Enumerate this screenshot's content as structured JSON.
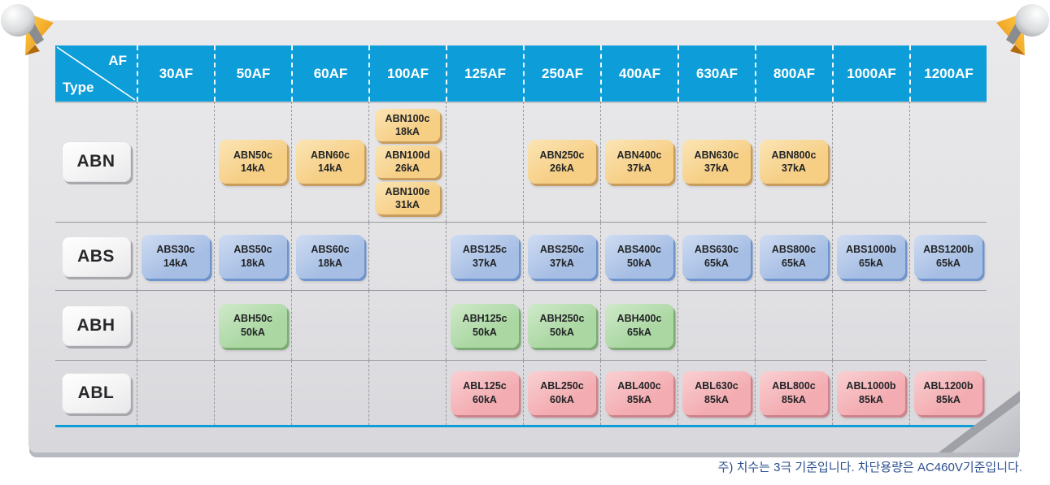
{
  "header": {
    "corner_top": "AF",
    "corner_bottom": "Type",
    "columns": [
      "30AF",
      "50AF",
      "60AF",
      "100AF",
      "125AF",
      "250AF",
      "400AF",
      "630AF",
      "800AF",
      "1000AF",
      "1200AF"
    ]
  },
  "rows": [
    {
      "type": "ABN",
      "family": "abn",
      "cells": [
        [],
        [
          {
            "model": "ABN50c",
            "ka": "14kA"
          }
        ],
        [
          {
            "model": "ABN60c",
            "ka": "14kA"
          }
        ],
        [
          {
            "model": "ABN100c",
            "ka": "18kA"
          },
          {
            "model": "ABN100d",
            "ka": "26kA"
          },
          {
            "model": "ABN100e",
            "ka": "31kA"
          }
        ],
        [],
        [
          {
            "model": "ABN250c",
            "ka": "26kA"
          }
        ],
        [
          {
            "model": "ABN400c",
            "ka": "37kA"
          }
        ],
        [
          {
            "model": "ABN630c",
            "ka": "37kA"
          }
        ],
        [
          {
            "model": "ABN800c",
            "ka": "37kA"
          }
        ],
        [],
        []
      ]
    },
    {
      "type": "ABS",
      "family": "abs",
      "cells": [
        [
          {
            "model": "ABS30c",
            "ka": "14kA"
          }
        ],
        [
          {
            "model": "ABS50c",
            "ka": "18kA"
          }
        ],
        [
          {
            "model": "ABS60c",
            "ka": "18kA"
          }
        ],
        [],
        [
          {
            "model": "ABS125c",
            "ka": "37kA"
          }
        ],
        [
          {
            "model": "ABS250c",
            "ka": "37kA"
          }
        ],
        [
          {
            "model": "ABS400c",
            "ka": "50kA"
          }
        ],
        [
          {
            "model": "ABS630c",
            "ka": "65kA"
          }
        ],
        [
          {
            "model": "ABS800c",
            "ka": "65kA"
          }
        ],
        [
          {
            "model": "ABS1000b",
            "ka": "65kA"
          }
        ],
        [
          {
            "model": "ABS1200b",
            "ka": "65kA"
          }
        ]
      ]
    },
    {
      "type": "ABH",
      "family": "abh",
      "cells": [
        [],
        [
          {
            "model": "ABH50c",
            "ka": "50kA"
          }
        ],
        [],
        [],
        [
          {
            "model": "ABH125c",
            "ka": "50kA"
          }
        ],
        [
          {
            "model": "ABH250c",
            "ka": "50kA"
          }
        ],
        [
          {
            "model": "ABH400c",
            "ka": "65kA"
          }
        ],
        [],
        [],
        [],
        []
      ]
    },
    {
      "type": "ABL",
      "family": "abl",
      "cells": [
        [],
        [],
        [],
        [],
        [
          {
            "model": "ABL125c",
            "ka": "60kA"
          }
        ],
        [
          {
            "model": "ABL250c",
            "ka": "60kA"
          }
        ],
        [
          {
            "model": "ABL400c",
            "ka": "85kA"
          }
        ],
        [
          {
            "model": "ABL630c",
            "ka": "85kA"
          }
        ],
        [
          {
            "model": "ABL800c",
            "ka": "85kA"
          }
        ],
        [
          {
            "model": "ABL1000b",
            "ka": "85kA"
          }
        ],
        [
          {
            "model": "ABL1200b",
            "ka": "85kA"
          }
        ]
      ]
    }
  ],
  "footnote": "주) 치수는 3극 기준입니다. 차단용량은 AC460V기준입니다.",
  "colors": {
    "header-bg": "#0D9ED9",
    "abn-fill": "#F6CE84",
    "abn-light": "#FBE5B5",
    "abn-shadow": "#C79C5C",
    "abs-fill": "#A6BEE4",
    "abs-light": "#CFDCF2",
    "abs-shadow": "#6E93CD",
    "abh-fill": "#AAD7A2",
    "abh-light": "#CFE9C9",
    "abh-shadow": "#7CAC74",
    "abl-fill": "#F3ACB1",
    "abl-light": "#F9D0D2",
    "abl-shadow": "#CD838B",
    "grid-line": "#97999D",
    "panel-bg": "#E3E3E6",
    "footnote-text": "#2C4F8E",
    "fold-yellow": "#FFD14E",
    "fold-orange": "#E8890B"
  }
}
